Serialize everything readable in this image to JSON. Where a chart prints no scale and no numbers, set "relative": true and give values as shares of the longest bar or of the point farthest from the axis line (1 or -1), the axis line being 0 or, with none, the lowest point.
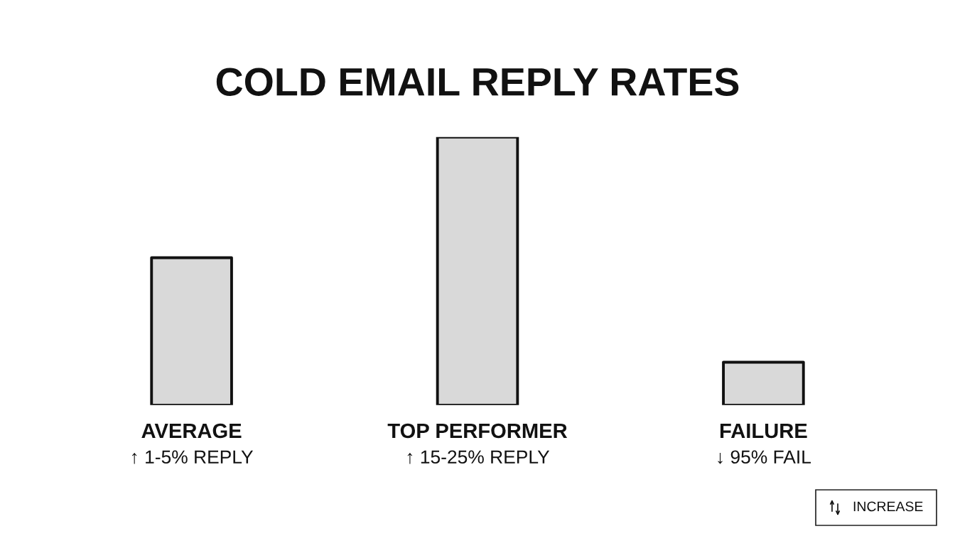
{
  "chart_data": {
    "type": "bar",
    "title": "COLD EMAIL REPLY RATES",
    "categories": [
      "AVERAGE",
      "TOP PERFORMER",
      "FAILURE"
    ],
    "values": [
      0.55,
      1,
      0.16
    ],
    "relative": true,
    "color": "#d9d9d9",
    "annotations": [
      "↑ 1-5% REPLY",
      "↑ 15-25% REPLY",
      "↓ 95% FAIL",
      "INCREASE"
    ]
  }
}
